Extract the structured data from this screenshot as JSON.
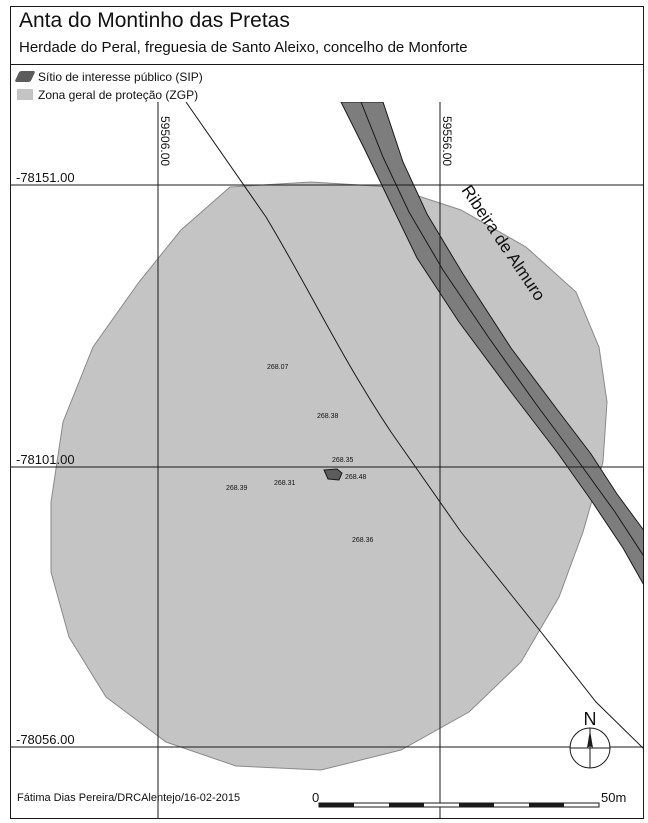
{
  "header": {
    "title": "Anta do Montinho das Pretas",
    "subtitle": "Herdade do Peral, freguesia de Santo Aleixo, concelho de Monforte"
  },
  "legend": {
    "items": [
      {
        "label": "Sítio de interesse público (SIP)",
        "color": "#5c5c5c"
      },
      {
        "label": "Zona geral de proteção (ZGP)",
        "color": "#c4c4c4"
      }
    ]
  },
  "grid": {
    "easting_labels": [
      "59506.00",
      "59556.00"
    ],
    "northing_labels": [
      "-78151.00",
      "-78101.00",
      "-78056.00"
    ]
  },
  "river": {
    "label": "Ribeira de Almuro"
  },
  "spot_heights": [
    "268.07",
    "268.38",
    "268.35",
    "268.48",
    "268.39",
    "268.31",
    "268.36"
  ],
  "north_arrow": {
    "label": "N"
  },
  "scale_bar": {
    "start_label": "0",
    "end_label": "50m"
  },
  "credit": "Fátima Dias Pereira/DRCAlentejo/16-02-2015",
  "colors": {
    "zone": "#c4c4c4",
    "river": "#7d7d7d",
    "site": "#5c5c5c",
    "lines": "#1a1a1a"
  }
}
